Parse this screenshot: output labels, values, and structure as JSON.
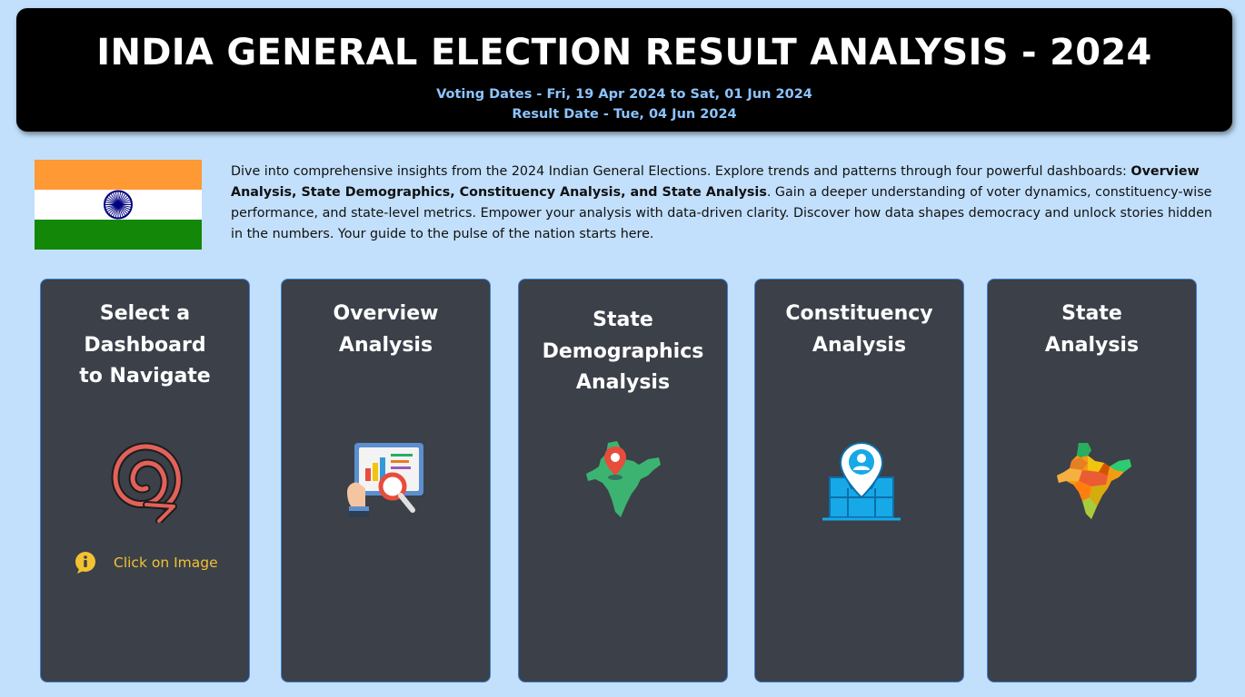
{
  "header": {
    "title": "INDIA GENERAL ELECTION RESULT ANALYSIS - 2024",
    "voting_dates": "Voting Dates - Fri, 19 Apr 2024 to Sat, 01 Jun 2024",
    "result_date": "Result Date - Tue, 04 Jun 2024"
  },
  "intro": {
    "part1": "Dive into comprehensive insights from the 2024 Indian General Elections. Explore trends and patterns through four powerful dashboards: ",
    "bold": "Overview Analysis, State Demographics, Constituency Analysis, and State Analysis",
    "part2": ". Gain a deeper understanding of voter dynamics, constituency-wise performance, and state-level metrics. Empower your analysis with data-driven clarity. Discover how data shapes democracy and unlock stories hidden in the numbers. Your guide to the pulse of the nation starts here."
  },
  "flag": {
    "saffron": "#ff9933",
    "white": "#ffffff",
    "green": "#138808",
    "chakra": "#000080"
  },
  "cards": {
    "select": {
      "line1": "Select a",
      "line2": "Dashboard",
      "line3": "to Navigate",
      "hint": "Click on Image",
      "icon": "spiral-arrow-icon"
    },
    "overview": {
      "line1": "Overview",
      "line2": "Analysis",
      "icon": "report-magnifier-icon"
    },
    "demographics": {
      "line1": "State",
      "line2": "Demographics",
      "line3": "Analysis",
      "icon": "india-map-pin-icon"
    },
    "constituency": {
      "line1": "Constituency",
      "line2": "Analysis",
      "icon": "location-person-icon"
    },
    "state": {
      "line1": "State",
      "line2": "Analysis",
      "icon": "india-states-map-icon"
    }
  },
  "colors": {
    "background": "#c2e0fc",
    "card": "#3b4049",
    "card_border": "#3f7fd0",
    "subtitle": "#8cc4ff",
    "hint": "#f2c230"
  }
}
